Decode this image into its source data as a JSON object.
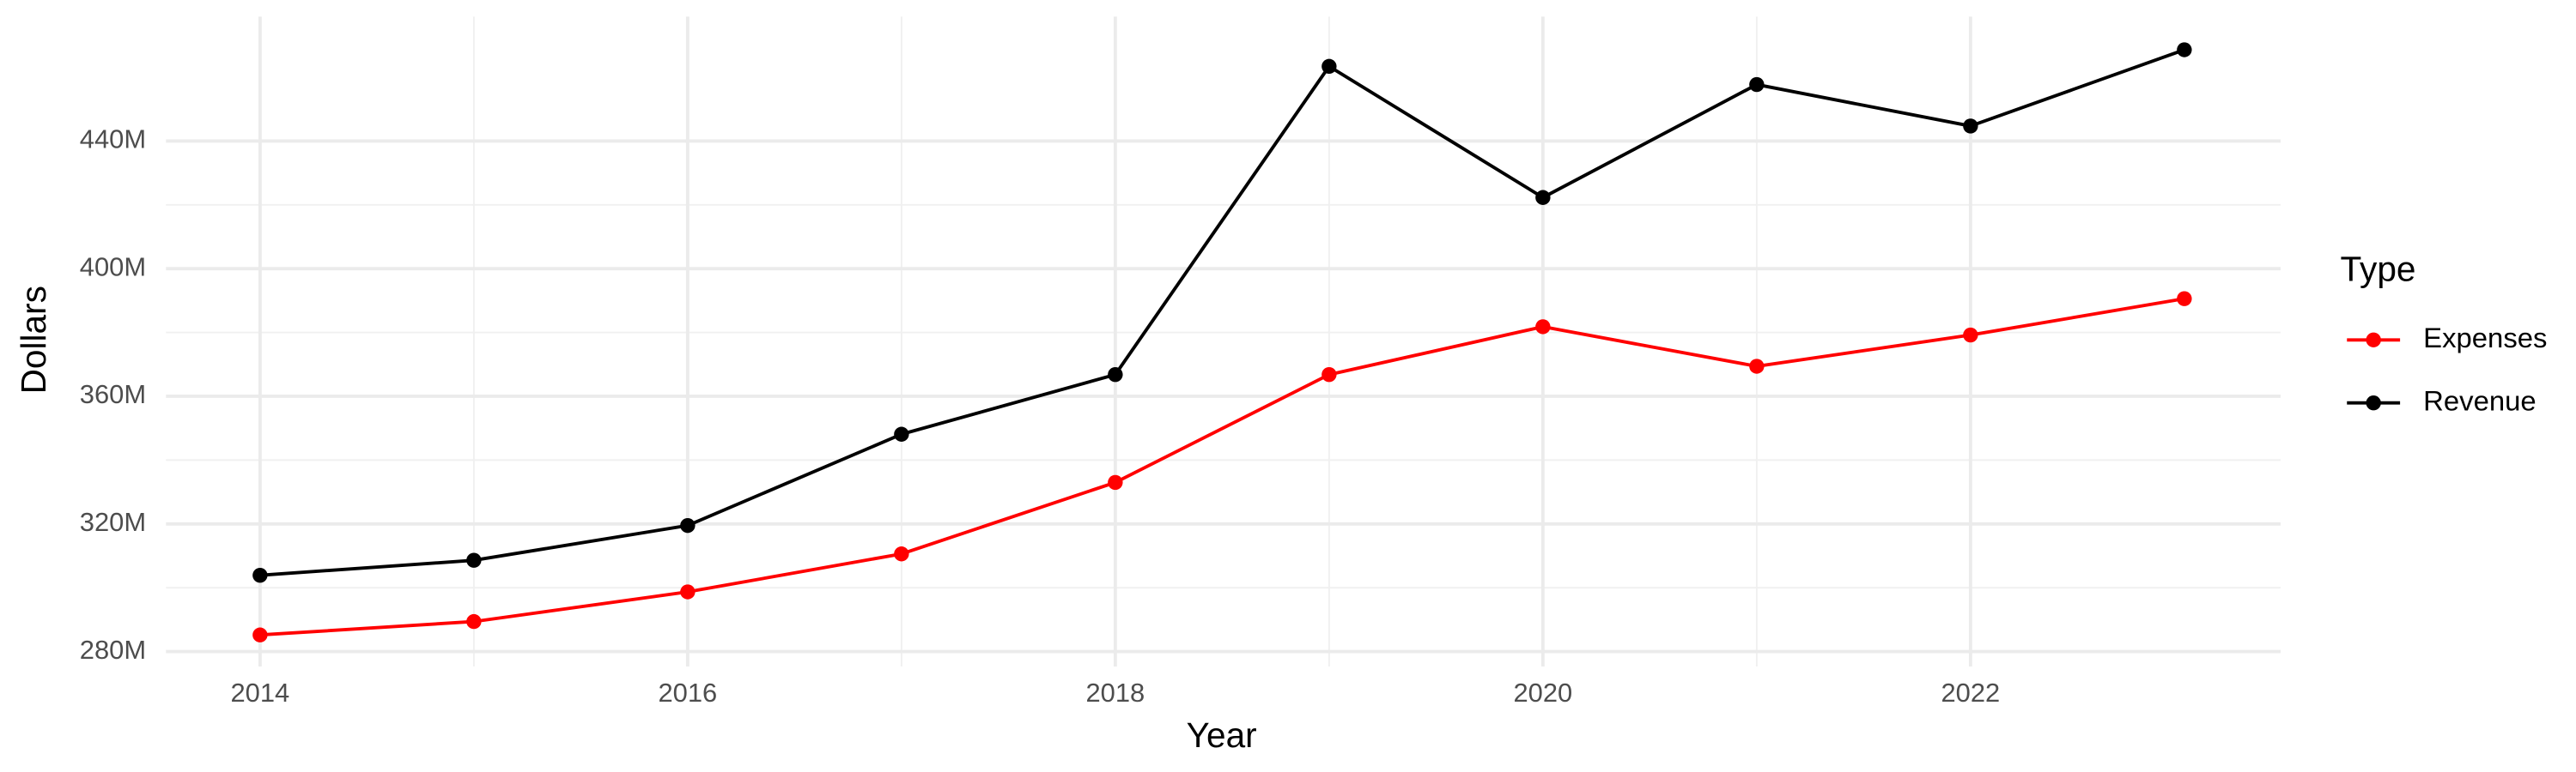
{
  "chart_data": {
    "type": "line",
    "x_label": "Year",
    "y_label": "Dollars",
    "legend_title": "Type",
    "legend_position": "right",
    "grid": true,
    "x": [
      2014,
      2015,
      2016,
      2017,
      2018,
      2019,
      2020,
      2021,
      2022,
      2023
    ],
    "xlim": [
      2013.56,
      2023.45
    ],
    "xticks": [
      2014,
      2016,
      2018,
      2020,
      2022
    ],
    "ylim": [
      275300000,
      479000000
    ],
    "yticks": [
      {
        "value": 280000000,
        "label": "280M"
      },
      {
        "value": 320000000,
        "label": "320M"
      },
      {
        "value": 360000000,
        "label": "360M"
      },
      {
        "value": 400000000,
        "label": "400M"
      },
      {
        "value": 440000000,
        "label": "440M"
      }
    ],
    "series": [
      {
        "name": "Expenses",
        "color": "#ff0000",
        "values": [
          285200000,
          289400000,
          298700000,
          310600000,
          333000000,
          366800000,
          381800000,
          369400000,
          379200000,
          390600000
        ]
      },
      {
        "name": "Revenue",
        "color": "#000000",
        "values": [
          303900000,
          308600000,
          319500000,
          348100000,
          366800000,
          463400000,
          422300000,
          457700000,
          444700000,
          468600000
        ]
      }
    ]
  }
}
